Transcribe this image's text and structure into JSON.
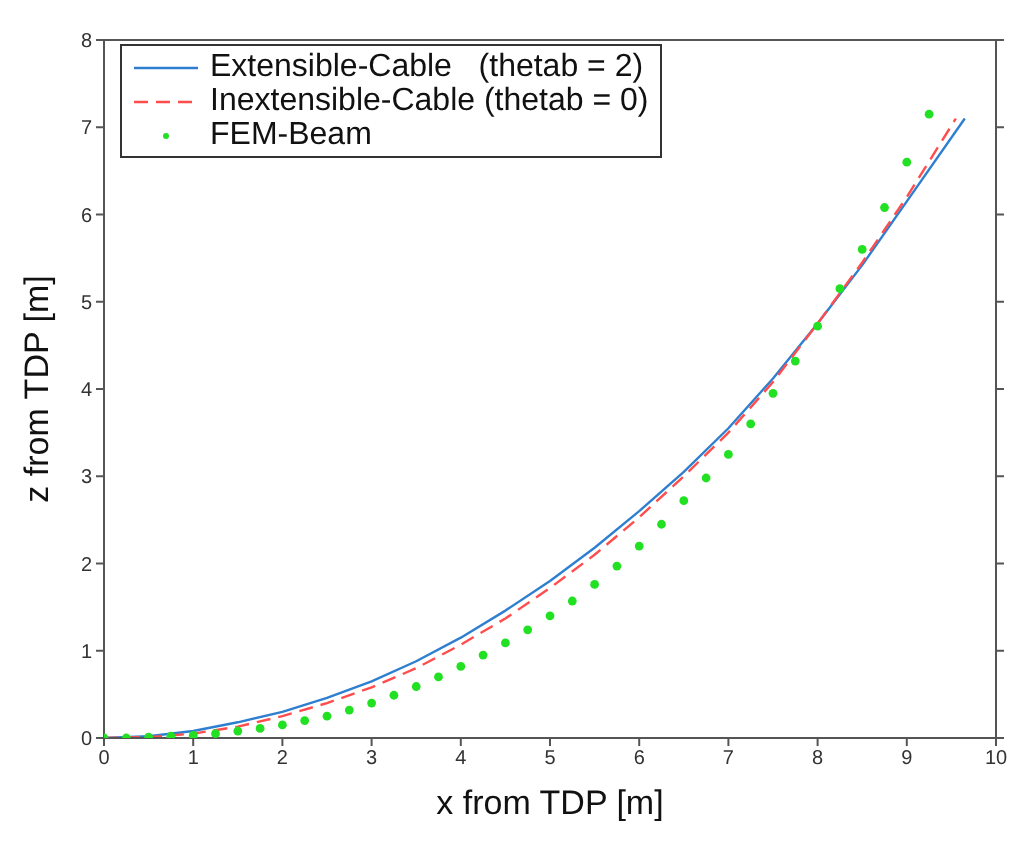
{
  "chart_data": {
    "type": "line",
    "xlabel": "x from TDP [m]",
    "ylabel": "z from TDP [m]",
    "xlim": [
      0,
      10
    ],
    "ylim": [
      0,
      8
    ],
    "xticks": [
      0,
      1,
      2,
      3,
      4,
      5,
      6,
      7,
      8,
      9,
      10
    ],
    "yticks": [
      0,
      1,
      2,
      3,
      4,
      5,
      6,
      7,
      8
    ],
    "grid": false,
    "legend": "top left",
    "series": [
      {
        "name": "Extensible-Cable   (thetab = 2)",
        "color": "#2f7fd0",
        "line_style": "solid",
        "marker": "none",
        "x": [
          0,
          0.5,
          1,
          1.5,
          2,
          2.5,
          3,
          3.5,
          4,
          4.5,
          5,
          5.5,
          6,
          6.5,
          7,
          7.5,
          8,
          8.5,
          9,
          9.65
        ],
        "values": [
          0,
          0.02,
          0.08,
          0.18,
          0.3,
          0.46,
          0.65,
          0.88,
          1.15,
          1.46,
          1.8,
          2.18,
          2.6,
          3.05,
          3.55,
          4.12,
          4.75,
          5.42,
          6.15,
          7.1
        ]
      },
      {
        "name": "Inextensible-Cable (thetab = 0)",
        "color": "#ff4d4d",
        "line_style": "dashed",
        "marker": "none",
        "x": [
          0,
          0.5,
          1,
          1.5,
          2,
          2.5,
          3,
          3.5,
          4,
          4.5,
          5,
          5.5,
          6,
          6.5,
          7,
          7.5,
          8,
          8.5,
          9,
          9.55
        ],
        "values": [
          0,
          0.01,
          0.05,
          0.13,
          0.25,
          0.4,
          0.58,
          0.8,
          1.07,
          1.37,
          1.72,
          2.1,
          2.53,
          3,
          3.5,
          4.08,
          4.75,
          5.45,
          6.2,
          7.1
        ]
      },
      {
        "name": "FEM-Beam",
        "type": "scatter",
        "color": "#22e022",
        "marker": "circle",
        "x": [
          0,
          0.25,
          0.5,
          0.75,
          1,
          1.25,
          1.5,
          1.75,
          2,
          2.25,
          2.5,
          2.75,
          3,
          3.25,
          3.5,
          3.75,
          4,
          4.25,
          4.5,
          4.75,
          5,
          5.25,
          5.5,
          5.75,
          6,
          6.25,
          6.5,
          6.75,
          7,
          7.25,
          7.5,
          7.75,
          8,
          8.25,
          8.5,
          8.75,
          9,
          9.25
        ],
        "values": [
          0,
          0,
          0.01,
          0.02,
          0.03,
          0.05,
          0.08,
          0.11,
          0.15,
          0.2,
          0.25,
          0.32,
          0.4,
          0.49,
          0.59,
          0.7,
          0.82,
          0.95,
          1.09,
          1.24,
          1.4,
          1.57,
          1.76,
          1.97,
          2.2,
          2.45,
          2.72,
          2.98,
          3.25,
          3.6,
          3.95,
          4.32,
          4.72,
          5.15,
          5.6,
          6.08,
          6.6,
          7.15
        ]
      }
    ]
  }
}
